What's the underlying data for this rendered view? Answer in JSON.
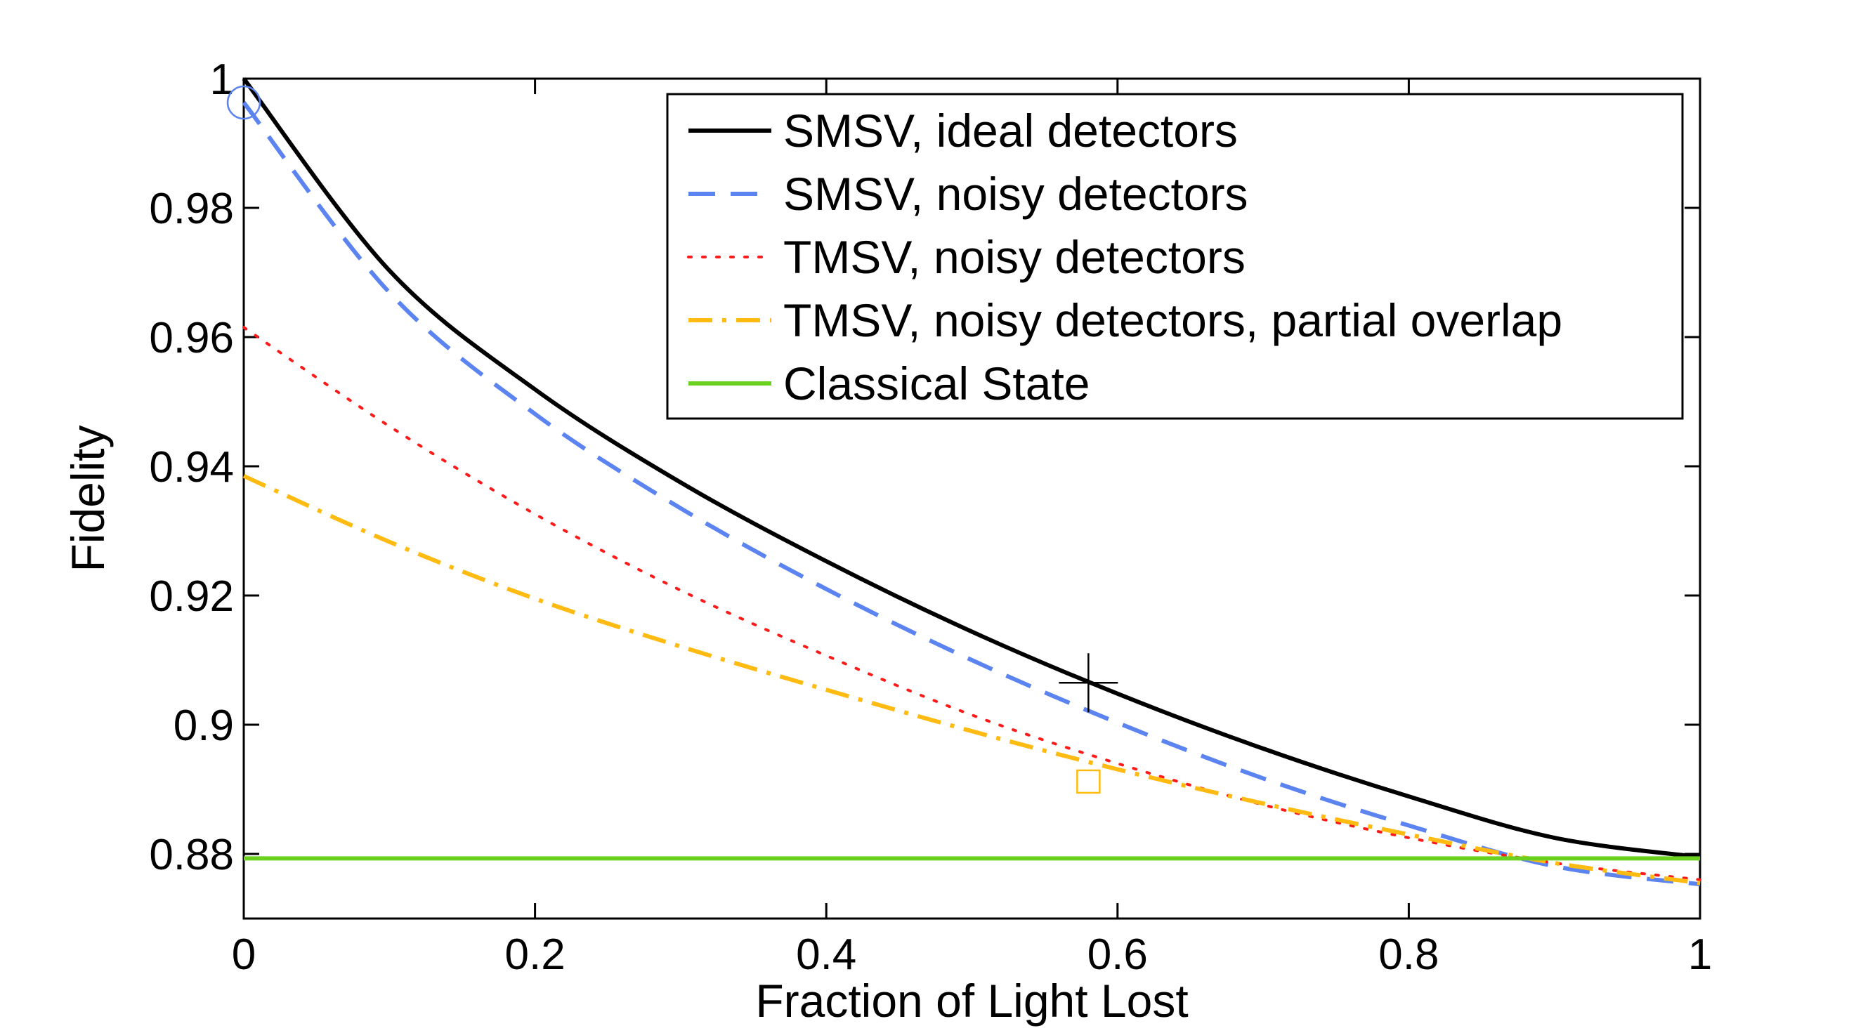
{
  "chart_data": {
    "type": "line",
    "title": "",
    "xlabel": "Fraction of Light Lost",
    "ylabel": "Fidelity",
    "xlim": [
      0,
      1
    ],
    "ylim": [
      0.87,
      1.0
    ],
    "xticks": [
      {
        "value": 0,
        "label": "0"
      },
      {
        "value": 0.2,
        "label": "0.2"
      },
      {
        "value": 0.4,
        "label": "0.4"
      },
      {
        "value": 0.6,
        "label": "0.6"
      },
      {
        "value": 0.8,
        "label": "0.8"
      },
      {
        "value": 1,
        "label": "1"
      }
    ],
    "yticks": [
      {
        "value": 0.88,
        "label": "0.88"
      },
      {
        "value": 0.9,
        "label": "0.9"
      },
      {
        "value": 0.92,
        "label": "0.92"
      },
      {
        "value": 0.94,
        "label": "0.94"
      },
      {
        "value": 0.96,
        "label": "0.96"
      },
      {
        "value": 0.98,
        "label": "0.98"
      },
      {
        "value": 1.0,
        "label": "1"
      }
    ],
    "grid": false,
    "legend_position": "top-right",
    "x": [
      0,
      0.1,
      0.2,
      0.3,
      0.4,
      0.5,
      0.6,
      0.7,
      0.8,
      0.9,
      1.0
    ],
    "series": [
      {
        "name": "SMSV, ideal detectors",
        "color": "#000000",
        "style": "solid",
        "values": [
          1.0,
          0.9703,
          0.9519,
          0.9375,
          0.9253,
          0.9144,
          0.9048,
          0.8963,
          0.8889,
          0.8825,
          0.8795
        ]
      },
      {
        "name": "SMSV, noisy detectors",
        "color": "#5b84f0",
        "style": "dashed",
        "values": [
          0.9963,
          0.9669,
          0.9481,
          0.9335,
          0.921,
          0.91,
          0.9003,
          0.8917,
          0.8844,
          0.8781,
          0.8753
        ]
      },
      {
        "name": "TMSV, noisy detectors",
        "color": "#ff1a1a",
        "style": "dotted",
        "values": [
          0.9615,
          0.9462,
          0.9326,
          0.9208,
          0.9107,
          0.9015,
          0.894,
          0.8876,
          0.8825,
          0.8786,
          0.876
        ]
      },
      {
        "name": "TMSV, noisy detectors, partial overlap",
        "color": "#ffbb11",
        "style": "dashdot",
        "values": [
          0.9385,
          0.9283,
          0.9195,
          0.9121,
          0.9054,
          0.899,
          0.8931,
          0.8878,
          0.883,
          0.8786,
          0.8755
        ]
      },
      {
        "name": "Classical State",
        "color": "#6ad120",
        "style": "solid",
        "values": [
          0.8793,
          0.8793,
          0.8793,
          0.8793,
          0.8793,
          0.8793,
          0.8793,
          0.8793,
          0.8793,
          0.8793,
          0.8793
        ]
      }
    ],
    "markers": [
      {
        "series": "SMSV, noisy detectors",
        "shape": "circle",
        "x": 0.0,
        "y": 0.9963,
        "color": "#5b84f0"
      },
      {
        "series": "SMSV, ideal detectors",
        "shape": "plus",
        "x": 0.58,
        "y": 0.9065,
        "color": "#000000"
      },
      {
        "series": "TMSV, noisy detectors, partial overlap",
        "shape": "square",
        "x": 0.58,
        "y": 0.8912,
        "color": "#ffbb11"
      }
    ]
  }
}
